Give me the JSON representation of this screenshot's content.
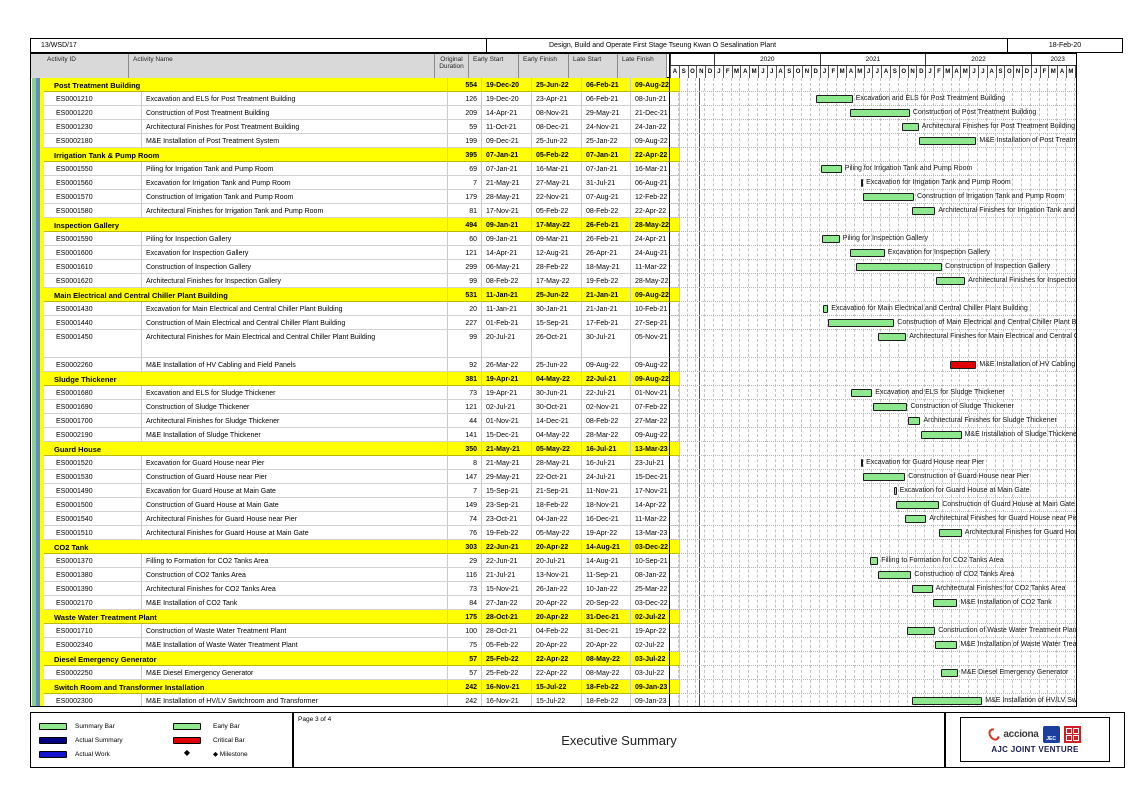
{
  "page": {
    "form_no": "13/WSD/17",
    "title": "Design, Build and Operate First Stage Tseung Kwan O Sesalination Plant",
    "print_date": "18-Feb-20",
    "page_label": "Page 3 of 4",
    "report_title": "Executive Summary",
    "venture": "AJC JOINT VENTURE",
    "acciona_text": "acciona",
    "jec_text": "JEC"
  },
  "chart_data": {
    "type": "table",
    "subtype": "gantt",
    "title": "Executive Summary",
    "columns": [
      "Activity ID",
      "Activity Name",
      "Original Duration",
      "Early Start",
      "Early Finish",
      "Late Start",
      "Late Finish"
    ],
    "timeline": {
      "years": [
        {
          "label": "",
          "months": [
            "A",
            "S",
            "O",
            "N",
            "D"
          ]
        },
        {
          "label": "2020",
          "months": [
            "J",
            "F",
            "M",
            "A",
            "M",
            "J",
            "J",
            "A",
            "S",
            "O",
            "N",
            "D"
          ]
        },
        {
          "label": "2021",
          "months": [
            "J",
            "F",
            "M",
            "A",
            "M",
            "J",
            "J",
            "A",
            "S",
            "O",
            "N",
            "D"
          ]
        },
        {
          "label": "2022",
          "months": [
            "J",
            "F",
            "M",
            "A",
            "M",
            "J",
            "J",
            "A",
            "S",
            "O",
            "N",
            "D"
          ]
        },
        {
          "label": "2023",
          "months": [
            "J",
            "F",
            "M",
            "A",
            "M",
            "J"
          ]
        }
      ]
    },
    "legend": [
      {
        "swatch": "summary",
        "label": "Summary Bar",
        "color": "#8ee88e"
      },
      {
        "swatch": "early",
        "label": "Early Bar",
        "color": "#8ee88e"
      },
      {
        "swatch": "actual-summary",
        "label": "Actual Summary",
        "color": "#000080"
      },
      {
        "swatch": "critical",
        "label": "Critical Bar",
        "color": "#e00000"
      },
      {
        "swatch": "actual-work",
        "label": "Actual Work",
        "color": "#1414cc"
      },
      {
        "swatch": "milestone",
        "label": "Milestone",
        "glyph": "◆"
      }
    ],
    "bar_colors": {
      "early": "#8ee88e",
      "critical": "#e00000"
    },
    "sections": [
      {
        "name": "Post Treatment Building",
        "duration": "554",
        "early_start": "19-Dec-20",
        "early_finish": "25-Jun-22",
        "late_start": "06-Feb-21",
        "late_finish": "09-Aug-22",
        "activities": [
          {
            "id": "ES0001210",
            "name": "Excavation and ELS for Post Treatment Building",
            "duration": "126",
            "early_start": "19-Dec-20",
            "early_finish": "23-Apr-21",
            "late_start": "06-Feb-21",
            "late_finish": "08-Jun-21"
          },
          {
            "id": "ES0001220",
            "name": "Construction of Post Treatment Building",
            "duration": "209",
            "early_start": "14-Apr-21",
            "early_finish": "08-Nov-21",
            "late_start": "29-May-21",
            "late_finish": "21-Dec-21"
          },
          {
            "id": "ES0001230",
            "name": "Architectural Finishes for Post Treatment Building",
            "duration": "59",
            "early_start": "11-Oct-21",
            "early_finish": "08-Dec-21",
            "late_start": "24-Nov-21",
            "late_finish": "24-Jan-22"
          },
          {
            "id": "ES0002180",
            "name": "M&E Installation of Post Treatment System",
            "duration": "199",
            "early_start": "09-Dec-21",
            "early_finish": "25-Jun-22",
            "late_start": "25-Jan-22",
            "late_finish": "09-Aug-22"
          }
        ]
      },
      {
        "name": "Irrigation Tank & Pump Room",
        "duration": "395",
        "early_start": "07-Jan-21",
        "early_finish": "05-Feb-22",
        "late_start": "07-Jan-21",
        "late_finish": "22-Apr-22",
        "activities": [
          {
            "id": "ES0001550",
            "name": "Piling for Irrigation Tank and Pump Room",
            "duration": "69",
            "early_start": "07-Jan-21",
            "early_finish": "16-Mar-21",
            "late_start": "07-Jan-21",
            "late_finish": "16-Mar-21"
          },
          {
            "id": "ES0001560",
            "name": "Excavation for Irrigation Tank and Pump Room",
            "duration": "7",
            "early_start": "21-May-21",
            "early_finish": "27-May-21",
            "late_start": "31-Jul-21",
            "late_finish": "06-Aug-21"
          },
          {
            "id": "ES0001570",
            "name": "Construction of Irrigation Tank and Pump Room",
            "duration": "179",
            "early_start": "28-May-21",
            "early_finish": "22-Nov-21",
            "late_start": "07-Aug-21",
            "late_finish": "12-Feb-22"
          },
          {
            "id": "ES0001580",
            "name": "Architectural Finishes for Irrigation Tank and Pump Room",
            "duration": "81",
            "early_start": "17-Nov-21",
            "early_finish": "05-Feb-22",
            "late_start": "08-Feb-22",
            "late_finish": "22-Apr-22"
          }
        ]
      },
      {
        "name": "Inspection Gallery",
        "duration": "494",
        "early_start": "09-Jan-21",
        "early_finish": "17-May-22",
        "late_start": "26-Feb-21",
        "late_finish": "28-May-22",
        "activities": [
          {
            "id": "ES0001590",
            "name": "Piling for Inspection Gallery",
            "duration": "60",
            "early_start": "09-Jan-21",
            "early_finish": "09-Mar-21",
            "late_start": "26-Feb-21",
            "late_finish": "24-Apr-21"
          },
          {
            "id": "ES0001600",
            "name": "Excavation for Inspection Gallery",
            "duration": "121",
            "early_start": "14-Apr-21",
            "early_finish": "12-Aug-21",
            "late_start": "26-Apr-21",
            "late_finish": "24-Aug-21"
          },
          {
            "id": "ES0001610",
            "name": "Construction of Inspection Gallery",
            "duration": "299",
            "early_start": "06-May-21",
            "early_finish": "28-Feb-22",
            "late_start": "18-May-21",
            "late_finish": "11-Mar-22"
          },
          {
            "id": "ES0001620",
            "name": "Architectural Finishes for Inspection Gallery",
            "duration": "99",
            "early_start": "08-Feb-22",
            "early_finish": "17-May-22",
            "late_start": "19-Feb-22",
            "late_finish": "28-May-22"
          }
        ]
      },
      {
        "name": "Main Electrical and Central Chiller Plant Building",
        "duration": "531",
        "early_start": "11-Jan-21",
        "early_finish": "25-Jun-22",
        "late_start": "21-Jan-21",
        "late_finish": "09-Aug-22",
        "activities": [
          {
            "id": "ES0001430",
            "name": "Excavation for Main Electrical and Central Chiller Plant Building",
            "duration": "20",
            "early_start": "11-Jan-21",
            "early_finish": "30-Jan-21",
            "late_start": "21-Jan-21",
            "late_finish": "10-Feb-21"
          },
          {
            "id": "ES0001440",
            "name": "Construction of Main Electrical and Central Chiller Plant Building",
            "duration": "227",
            "early_start": "01-Feb-21",
            "early_finish": "15-Sep-21",
            "late_start": "17-Feb-21",
            "late_finish": "27-Sep-21"
          },
          {
            "id": "ES0001450",
            "name": "Architectural Finishes for Main Electrical and Central Chiller Plant Building",
            "duration": "99",
            "early_start": "20-Jul-21",
            "early_finish": "26-Oct-21",
            "late_start": "30-Jul-21",
            "late_finish": "05-Nov-21",
            "tall": true
          },
          {
            "id": "ES0002260",
            "name": "M&E Installation of HV Cabling and Field Panels",
            "duration": "92",
            "early_start": "26-Mar-22",
            "early_finish": "25-Jun-22",
            "late_start": "09-Aug-22",
            "late_finish": "09-Aug-22",
            "critical": true
          }
        ]
      },
      {
        "name": "Sludge Thickener",
        "duration": "381",
        "early_start": "19-Apr-21",
        "early_finish": "04-May-22",
        "late_start": "22-Jul-21",
        "late_finish": "09-Aug-22",
        "activities": [
          {
            "id": "ES0001680",
            "name": "Excavation and ELS for Sludge Thickener",
            "duration": "73",
            "early_start": "19-Apr-21",
            "early_finish": "30-Jun-21",
            "late_start": "22-Jul-21",
            "late_finish": "01-Nov-21"
          },
          {
            "id": "ES0001690",
            "name": "Construction of Sludge Thickener",
            "duration": "121",
            "early_start": "02-Jul-21",
            "early_finish": "30-Oct-21",
            "late_start": "02-Nov-21",
            "late_finish": "07-Feb-22"
          },
          {
            "id": "ES0001700",
            "name": "Architectural Finishes for Sludge Thickener",
            "duration": "44",
            "early_start": "01-Nov-21",
            "early_finish": "14-Dec-21",
            "late_start": "08-Feb-22",
            "late_finish": "27-Mar-22"
          },
          {
            "id": "ES0002190",
            "name": "M&E Installation of Sludge Thickener",
            "duration": "141",
            "early_start": "15-Dec-21",
            "early_finish": "04-May-22",
            "late_start": "28-Mar-22",
            "late_finish": "09-Aug-22"
          }
        ]
      },
      {
        "name": "Guard House",
        "duration": "350",
        "early_start": "21-May-21",
        "early_finish": "05-May-22",
        "late_start": "16-Jul-21",
        "late_finish": "13-Mar-23",
        "activities": [
          {
            "id": "ES0001520",
            "name": "Excavation for Guard House near Pier",
            "duration": "8",
            "early_start": "21-May-21",
            "early_finish": "28-May-21",
            "late_start": "16-Jul-21",
            "late_finish": "23-Jul-21"
          },
          {
            "id": "ES0001530",
            "name": "Construction of Guard House near Pier",
            "duration": "147",
            "early_start": "29-May-21",
            "early_finish": "22-Oct-21",
            "late_start": "24-Jul-21",
            "late_finish": "15-Dec-21"
          },
          {
            "id": "ES0001490",
            "name": "Excavation for Guard House at Main Gate",
            "duration": "7",
            "early_start": "15-Sep-21",
            "early_finish": "21-Sep-21",
            "late_start": "11-Nov-21",
            "late_finish": "17-Nov-21"
          },
          {
            "id": "ES0001500",
            "name": "Construction of Guard House at Main Gate",
            "duration": "149",
            "early_start": "23-Sep-21",
            "early_finish": "18-Feb-22",
            "late_start": "18-Nov-21",
            "late_finish": "14-Apr-22"
          },
          {
            "id": "ES0001540",
            "name": "Architectural Finishes for Guard House near Pier",
            "duration": "74",
            "early_start": "23-Oct-21",
            "early_finish": "04-Jan-22",
            "late_start": "16-Dec-21",
            "late_finish": "11-Mar-22"
          },
          {
            "id": "ES0001510",
            "name": "Architectural Finishes for Guard House at Main Gate",
            "duration": "76",
            "early_start": "19-Feb-22",
            "early_finish": "05-May-22",
            "late_start": "19-Apr-22",
            "late_finish": "13-Mar-23"
          }
        ]
      },
      {
        "name": "CO2 Tank",
        "duration": "303",
        "early_start": "22-Jun-21",
        "early_finish": "20-Apr-22",
        "late_start": "14-Aug-21",
        "late_finish": "03-Dec-22",
        "activities": [
          {
            "id": "ES0001370",
            "name": "Filling to Formation for CO2 Tanks Area",
            "duration": "29",
            "early_start": "22-Jun-21",
            "early_finish": "20-Jul-21",
            "late_start": "14-Aug-21",
            "late_finish": "10-Sep-21"
          },
          {
            "id": "ES0001380",
            "name": "Construction of CO2 Tanks Area",
            "duration": "116",
            "early_start": "21-Jul-21",
            "early_finish": "13-Nov-21",
            "late_start": "11-Sep-21",
            "late_finish": "08-Jan-22"
          },
          {
            "id": "ES0001390",
            "name": "Architectural Finishes for CO2 Tanks Area",
            "duration": "73",
            "early_start": "15-Nov-21",
            "early_finish": "26-Jan-22",
            "late_start": "10-Jan-22",
            "late_finish": "25-Mar-22"
          },
          {
            "id": "ES0002170",
            "name": "M&E Installation of CO2 Tank",
            "duration": "84",
            "early_start": "27-Jan-22",
            "early_finish": "20-Apr-22",
            "late_start": "20-Sep-22",
            "late_finish": "03-Dec-22"
          }
        ]
      },
      {
        "name": "Waste Water Treatment Plant",
        "duration": "175",
        "early_start": "28-Oct-21",
        "early_finish": "20-Apr-22",
        "late_start": "31-Dec-21",
        "late_finish": "02-Jul-22",
        "activities": [
          {
            "id": "ES0001710",
            "name": "Construction of Waste Water Treatment Plant",
            "duration": "100",
            "early_start": "28-Oct-21",
            "early_finish": "04-Feb-22",
            "late_start": "31-Dec-21",
            "late_finish": "19-Apr-22"
          },
          {
            "id": "ES0002340",
            "name": "M&E Installation of Waste Water Treatment Plant",
            "duration": "75",
            "early_start": "05-Feb-22",
            "early_finish": "20-Apr-22",
            "late_start": "20-Apr-22",
            "late_finish": "02-Jul-22"
          }
        ]
      },
      {
        "name": "Diesel Emergency Generator",
        "duration": "57",
        "early_start": "25-Feb-22",
        "early_finish": "22-Apr-22",
        "late_start": "08-May-22",
        "late_finish": "03-Jul-22",
        "activities": [
          {
            "id": "ES0002250",
            "name": "M&E Diesel Emergency Generator",
            "duration": "57",
            "early_start": "25-Feb-22",
            "early_finish": "22-Apr-22",
            "late_start": "08-May-22",
            "late_finish": "03-Jul-22"
          }
        ]
      },
      {
        "name": "Switch Room and Transformer Installation",
        "duration": "242",
        "early_start": "16-Nov-21",
        "early_finish": "15-Jul-22",
        "late_start": "18-Feb-22",
        "late_finish": "09-Jan-23",
        "activities": [
          {
            "id": "ES0002300",
            "name": "M&E Installation of HV/LV Switchroom and Transformer",
            "duration": "242",
            "early_start": "16-Nov-21",
            "early_finish": "15-Jul-22",
            "late_start": "18-Feb-22",
            "late_finish": "09-Jan-23"
          }
        ]
      }
    ]
  }
}
